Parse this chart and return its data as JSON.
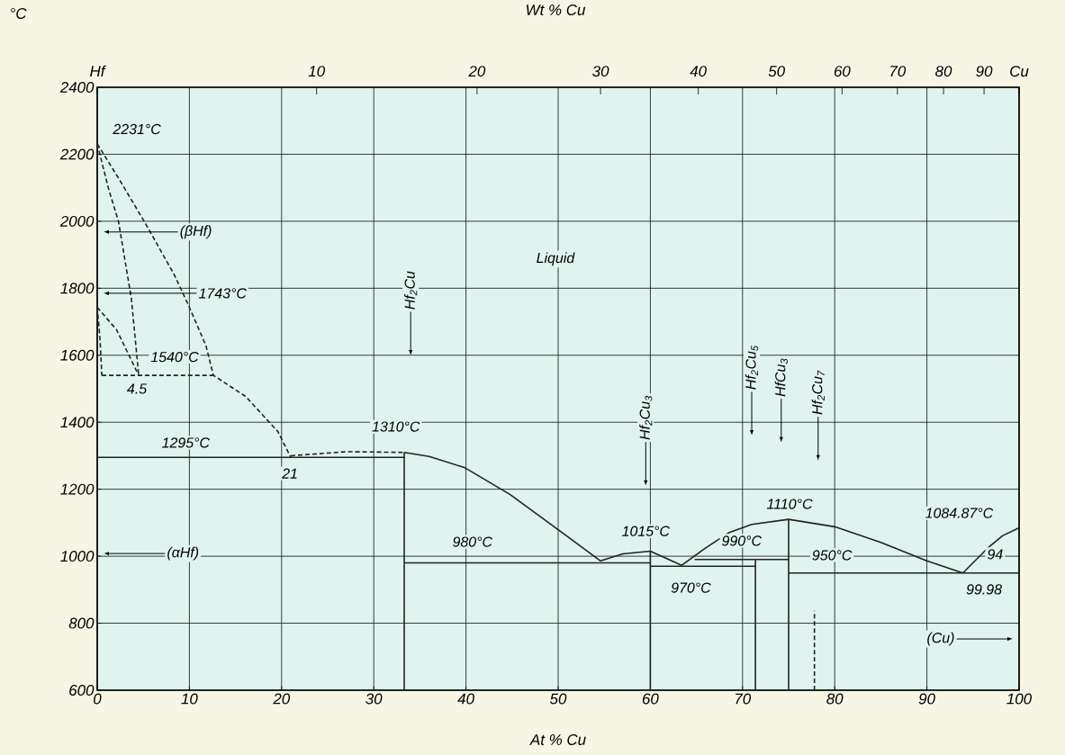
{
  "chart_data": {
    "type": "line",
    "xlabel": "At % Cu",
    "ylabel": "°C",
    "x2label": "Wt % Cu",
    "xlim": [
      0,
      100
    ],
    "ylim": [
      600,
      2400
    ],
    "xticks": [
      0,
      10,
      20,
      30,
      40,
      50,
      60,
      70,
      80,
      90,
      100
    ],
    "yticks": [
      600,
      800,
      1000,
      1200,
      1400,
      1600,
      1800,
      2000,
      2200,
      2400
    ],
    "grid": true,
    "series": [
      {
        "color": "#222222",
        "line_style": "dashed",
        "x": [
          0,
          2.5,
          5.3,
          8.4,
          10,
          11.8,
          12.6,
          16.1,
          19.6,
          21
        ],
        "values": [
          2231,
          2120,
          1990,
          1838,
          1743,
          1628,
          1540,
          1477,
          1372,
          1295
        ]
      },
      {
        "color": "#222222",
        "line_style": "dashed",
        "x": [
          0,
          1.2,
          2.3,
          3.7,
          4.5
        ],
        "values": [
          2231,
          2100,
          2000,
          1770,
          1540
        ]
      },
      {
        "color": "#222222",
        "line_style": "dashed",
        "x": [
          0,
          2.1,
          4.5
        ],
        "values": [
          1743,
          1676,
          1540
        ]
      },
      {
        "color": "#222222",
        "line_style": "dashed",
        "x": [
          0,
          0.3,
          0.5
        ],
        "values": [
          1743,
          1650,
          1540
        ]
      },
      {
        "color": "#222222",
        "line_style": "dashed",
        "x": [
          0.5,
          12.6
        ],
        "values": [
          1540,
          1540
        ]
      },
      {
        "color": "#222222",
        "line_style": "dashed",
        "x": [
          21,
          27,
          33.3
        ],
        "values": [
          1300,
          1312,
          1310
        ]
      },
      {
        "color": "#222222",
        "line_style": "solid",
        "x": [
          0,
          33.3
        ],
        "values": [
          1295,
          1295
        ]
      },
      {
        "color": "#222222",
        "line_style": "solid",
        "x": [
          33.3,
          33.3
        ],
        "values": [
          600,
          1310
        ]
      },
      {
        "color": "#222222",
        "line_style": "solid",
        "x": [
          33.3,
          36,
          39.9,
          44.8,
          50.2,
          54.6,
          57,
          60,
          63.4,
          66,
          68.5,
          71,
          75,
          80,
          85,
          90,
          93.9,
          96.7,
          98.2,
          100
        ],
        "values": [
          1310,
          1298,
          1264,
          1184,
          1075,
          986,
          1007,
          1015,
          973,
          1025,
          1070,
          1095,
          1110,
          1088,
          1041,
          986,
          950,
          1027,
          1061,
          1085
        ]
      },
      {
        "color": "#222222",
        "line_style": "solid",
        "x": [
          60,
          60
        ],
        "values": [
          600,
          1015
        ]
      },
      {
        "color": "#222222",
        "line_style": "solid",
        "x": [
          33.3,
          60
        ],
        "values": [
          980,
          980
        ]
      },
      {
        "color": "#222222",
        "line_style": "solid",
        "x": [
          60,
          71.4
        ],
        "values": [
          970,
          970
        ]
      },
      {
        "color": "#222222",
        "line_style": "solid",
        "x": [
          64.8,
          75
        ],
        "values": [
          990,
          990
        ]
      },
      {
        "color": "#222222",
        "line_style": "solid",
        "x": [
          71.4,
          71.4
        ],
        "values": [
          600,
          990
        ]
      },
      {
        "color": "#222222",
        "line_style": "solid",
        "x": [
          75,
          75
        ],
        "values": [
          600,
          1110
        ]
      },
      {
        "color": "#222222",
        "line_style": "solid",
        "x": [
          75,
          100
        ],
        "values": [
          950,
          950
        ]
      },
      {
        "color": "#222222",
        "line_style": "dashed",
        "x": [
          77.8,
          77.8
        ],
        "values": [
          600,
          837
        ]
      }
    ],
    "annotations": [
      "2231°C",
      "(βHf)",
      "Liquid",
      "1743°C",
      "1540°C",
      "4.5",
      "1295°C",
      "21",
      "1310°C",
      "980°C",
      "1015°C",
      "970°C",
      "990°C",
      "1110°C",
      "950°C",
      "1084.87°C",
      "94",
      "99.98",
      "(αHf)",
      "(Cu)",
      "Hf$_{2}$Cu",
      "Hf$_{2}$Cu$_{3}$",
      "Hf$_{2}$Cu$_{5}$",
      "HfCu$_{3}$",
      "Hf$_{2}$Cu$_{7}$",
      "Hf",
      "10",
      "20",
      "30",
      "40",
      "50",
      "60",
      "70",
      "80",
      "90",
      "Cu"
    ]
  }
}
